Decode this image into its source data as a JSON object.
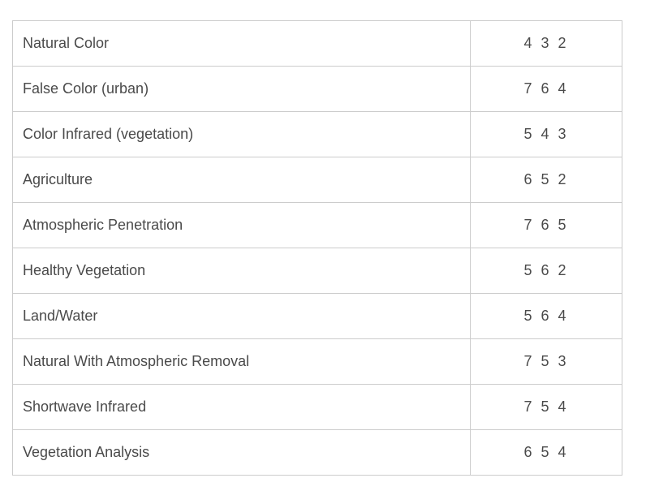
{
  "table": {
    "rows": [
      {
        "name": "Natural Color",
        "bands": "4 3 2"
      },
      {
        "name": "False Color (urban)",
        "bands": "7 6 4"
      },
      {
        "name": "Color Infrared (vegetation)",
        "bands": "5 4 3"
      },
      {
        "name": "Agriculture",
        "bands": "6 5 2"
      },
      {
        "name": "Atmospheric Penetration",
        "bands": "7 6 5"
      },
      {
        "name": "Healthy Vegetation",
        "bands": "5 6 2"
      },
      {
        "name": "Land/Water",
        "bands": "5 6 4"
      },
      {
        "name": "Natural With Atmospheric Removal",
        "bands": "7 5 3"
      },
      {
        "name": "Shortwave Infrared",
        "bands": "7 5 4"
      },
      {
        "name": "Vegetation Analysis",
        "bands": "6 5 4"
      }
    ]
  }
}
